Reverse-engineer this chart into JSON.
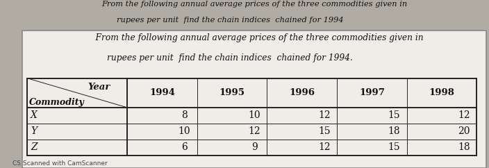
{
  "header_text_1": "From the following annual average prices of the three commodities given in",
  "header_text_2": "rupees per unit  find the chain indices  chained for 1994",
  "subheader_text_1": "    From the following annual average prices of the three commodities given in",
  "subheader_text_2": "rupees per unit  find the chain indices  chained for 1994.",
  "col_header_year": "Year",
  "col_header_commodity": "Commodity",
  "years": [
    "1994",
    "1995",
    "1996",
    "1997",
    "1998"
  ],
  "commodities": [
    "X",
    "Y",
    "Z"
  ],
  "data": {
    "X": [
      8,
      10,
      12,
      15,
      12
    ],
    "Y": [
      10,
      12,
      15,
      18,
      20
    ],
    "Z": [
      6,
      9,
      12,
      15,
      18
    ]
  },
  "bg_color": "#b0aca4",
  "table_bg": "#f0ede8",
  "footer_text": "CS Scanned with CamScanner",
  "border_color": "#222222",
  "top_strip_color": "#c8c4bc"
}
